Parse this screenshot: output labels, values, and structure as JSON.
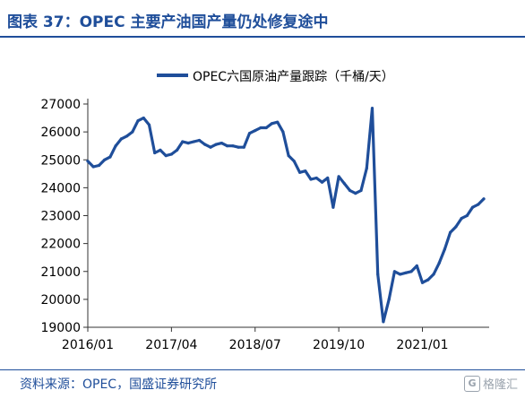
{
  "header": {
    "title": "图表 37：OPEC 主要产油国产量仍处修复途中"
  },
  "footer": {
    "source": "资料来源：OPEC，国盛证券研究所",
    "watermark_logo": "G",
    "watermark_text": "格隆汇"
  },
  "colors": {
    "line": "#1f4e9a",
    "title": "#1f4e9a",
    "axis": "#333333"
  },
  "chart_data": {
    "type": "line",
    "series": [
      {
        "name": "OPEC六国原油产量跟踪（千桶/天）",
        "values": [
          24950,
          24750,
          24800,
          25000,
          25100,
          25500,
          25750,
          25850,
          26000,
          26400,
          26500,
          26250,
          25250,
          25350,
          25150,
          25200,
          25350,
          25650,
          25600,
          25650,
          25700,
          25550,
          25450,
          25550,
          25600,
          25500,
          25500,
          25450,
          25450,
          25950,
          26050,
          26150,
          26150,
          26300,
          26350,
          26000,
          25150,
          24950,
          24550,
          24600,
          24300,
          24350,
          24200,
          24350,
          23300,
          24400,
          24150,
          23900,
          23800,
          23900,
          24700,
          26850,
          20900,
          19200,
          20000,
          21000,
          20900,
          20950,
          21000,
          21200,
          20600,
          20700,
          20900,
          21300,
          21800,
          22400,
          22600,
          22900,
          23000,
          23300,
          23400,
          23600
        ]
      }
    ],
    "x_start": "2016/01",
    "x_step": "1 month",
    "x_tick_labels": [
      "2016/01",
      "2017/04",
      "2018/07",
      "2019/10",
      "2021/01"
    ],
    "x_tick_index": [
      0,
      15,
      30,
      45,
      60
    ],
    "ylim": [
      19000,
      27000
    ],
    "y_ticks": [
      19000,
      20000,
      21000,
      22000,
      23000,
      24000,
      25000,
      26000,
      27000
    ],
    "grid": false,
    "legend_position": "top-right"
  }
}
